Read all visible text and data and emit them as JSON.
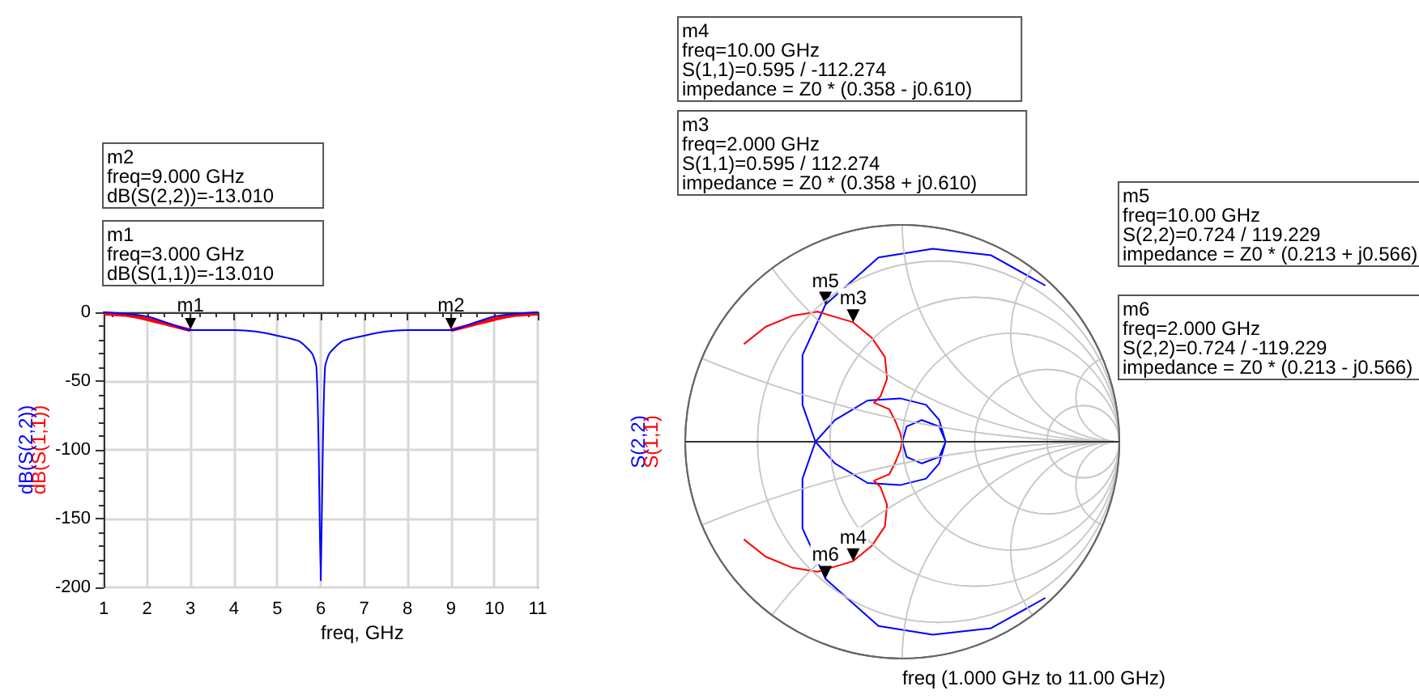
{
  "chart_data": [
    {
      "type": "line",
      "xlabel": "freq, GHz",
      "xlim": [
        1,
        11
      ],
      "xticks": [
        1,
        2,
        3,
        4,
        5,
        6,
        7,
        8,
        9,
        10,
        11
      ],
      "ylim": [
        -200,
        0
      ],
      "yticks": [
        -200,
        -150,
        -100,
        -50,
        0
      ],
      "grid": true,
      "x": [
        1,
        1.5,
        2,
        2.5,
        3,
        3.5,
        4,
        4.5,
        5,
        5.5,
        5.8,
        5.9,
        5.95,
        6,
        6.05,
        6.1,
        6.2,
        6.5,
        7,
        7.5,
        8,
        8.5,
        9,
        9.5,
        10,
        10.5,
        11
      ],
      "series": [
        {
          "name": "dB(S(1,1))",
          "color": "#ff0000",
          "values": [
            -1,
            -2,
            -5,
            -9,
            -13.01,
            null,
            null,
            null,
            null,
            null,
            null,
            null,
            null,
            null,
            null,
            null,
            null,
            null,
            null,
            null,
            null,
            null,
            -13.01,
            -9,
            -5,
            -2,
            -1
          ]
        },
        {
          "name": "dB(S(2,2))",
          "color": "#0000ff",
          "values": [
            0,
            -1,
            -3,
            -8,
            -13.01,
            -13,
            -13,
            -14,
            -17,
            -21,
            -30,
            -40,
            -95,
            -195,
            -95,
            -40,
            -30,
            -21,
            -17,
            -14,
            -13,
            -13,
            -13.01,
            -8,
            -3,
            -1,
            0
          ]
        }
      ],
      "annotations": [
        "m2\nfreq=9.000 GHz\ndB(S(2,2))=-13.010",
        "m1\nfreq=3.000 GHz\ndB(S(1,1))=-13.010",
        {
          "text": "m1",
          "x": 3,
          "y": -13.01
        },
        {
          "text": "m2",
          "x": 9,
          "y": -13.01
        }
      ]
    },
    {
      "type": "other",
      "xlabel": "freq (1.000 GHz to 11.00 GHz)",
      "annotations": [
        "m4\nfreq=10.00 GHz\nS(1,1)=0.595 / -112.274\nimpedance = Z0 * (0.358 - j0.610)",
        "m3\nfreq=2.000 GHz\nS(1,1)=0.595 / 112.274\nimpedance = Z0 * (0.358 + j0.610)",
        "m5\nfreq=10.00 GHz\nS(2,2)=0.724 / 119.229\nimpedance = Z0 * (0.213 + j0.566)",
        "m6\nfreq=2.000 GHz\nS(2,2)=0.724 / -119.229\nimpedance = Z0 * (0.213 - j0.566)",
        "m5",
        "m3",
        "m4",
        "m6",
        "S(2,2)",
        "S(1,1)"
      ]
    }
  ]
}
